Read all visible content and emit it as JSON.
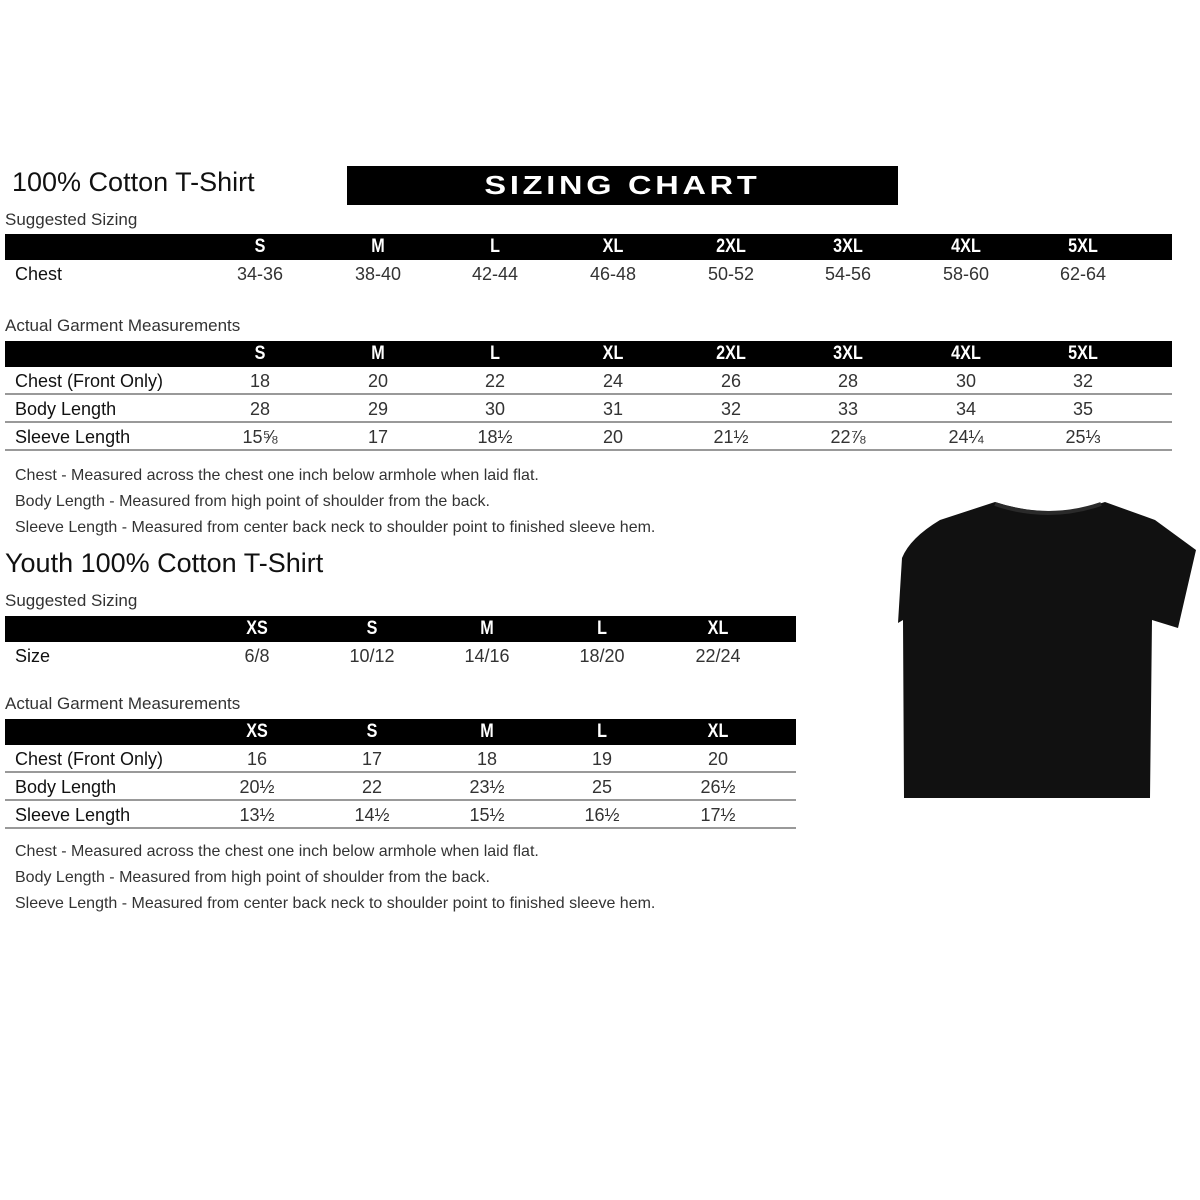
{
  "adult": {
    "title": "100% Cotton T-Shirt",
    "banner": "SIZING CHART",
    "suggested_label": "Suggested Sizing",
    "sizes": [
      "S",
      "M",
      "L",
      "XL",
      "2XL",
      "3XL",
      "4XL",
      "5XL"
    ],
    "suggested_rows": [
      {
        "label": "Chest",
        "values": [
          "34-36",
          "38-40",
          "42-44",
          "46-48",
          "50-52",
          "54-56",
          "58-60",
          "62-64"
        ]
      }
    ],
    "actual_label": "Actual Garment Measurements",
    "actual_rows": [
      {
        "label": "Chest (Front Only)",
        "values": [
          "18",
          "20",
          "22",
          "24",
          "26",
          "28",
          "30",
          "32"
        ]
      },
      {
        "label": "Body Length",
        "values": [
          "28",
          "29",
          "30",
          "31",
          "32",
          "33",
          "34",
          "35"
        ]
      },
      {
        "label": "Sleeve Length",
        "values": [
          "15⅝",
          "17",
          "18½",
          "20",
          "21½",
          "22⅞",
          "24¼",
          "25⅓"
        ]
      }
    ],
    "notes": [
      "Chest - Measured across the chest one inch below armhole when laid flat.",
      "Body Length - Measured from high point of shoulder from the back.",
      "Sleeve Length - Measured from center back neck to shoulder point to finished sleeve hem."
    ]
  },
  "youth": {
    "title": "Youth 100% Cotton T-Shirt",
    "suggested_label": "Suggested Sizing",
    "sizes": [
      "XS",
      "S",
      "M",
      "L",
      "XL"
    ],
    "suggested_rows": [
      {
        "label": "Size",
        "values": [
          "6/8",
          "10/12",
          "14/16",
          "18/20",
          "22/24"
        ]
      }
    ],
    "actual_label": "Actual Garment Measurements",
    "actual_rows": [
      {
        "label": "Chest (Front Only)",
        "values": [
          "16",
          "17",
          "18",
          "19",
          "20"
        ]
      },
      {
        "label": "Body Length",
        "values": [
          "20½",
          "22",
          "23½",
          "25",
          "26½"
        ]
      },
      {
        "label": "Sleeve Length",
        "values": [
          "13½",
          "14½",
          "15½",
          "16½",
          "17½"
        ]
      }
    ],
    "notes": [
      "Chest - Measured across the chest one inch below armhole when laid flat.",
      "Body Length - Measured from high point of shoulder from the back.",
      "Sleeve Length - Measured from center back neck to shoulder point to finished sleeve hem."
    ]
  },
  "image": {
    "icon": "t-shirt-icon",
    "color": "#111111"
  }
}
